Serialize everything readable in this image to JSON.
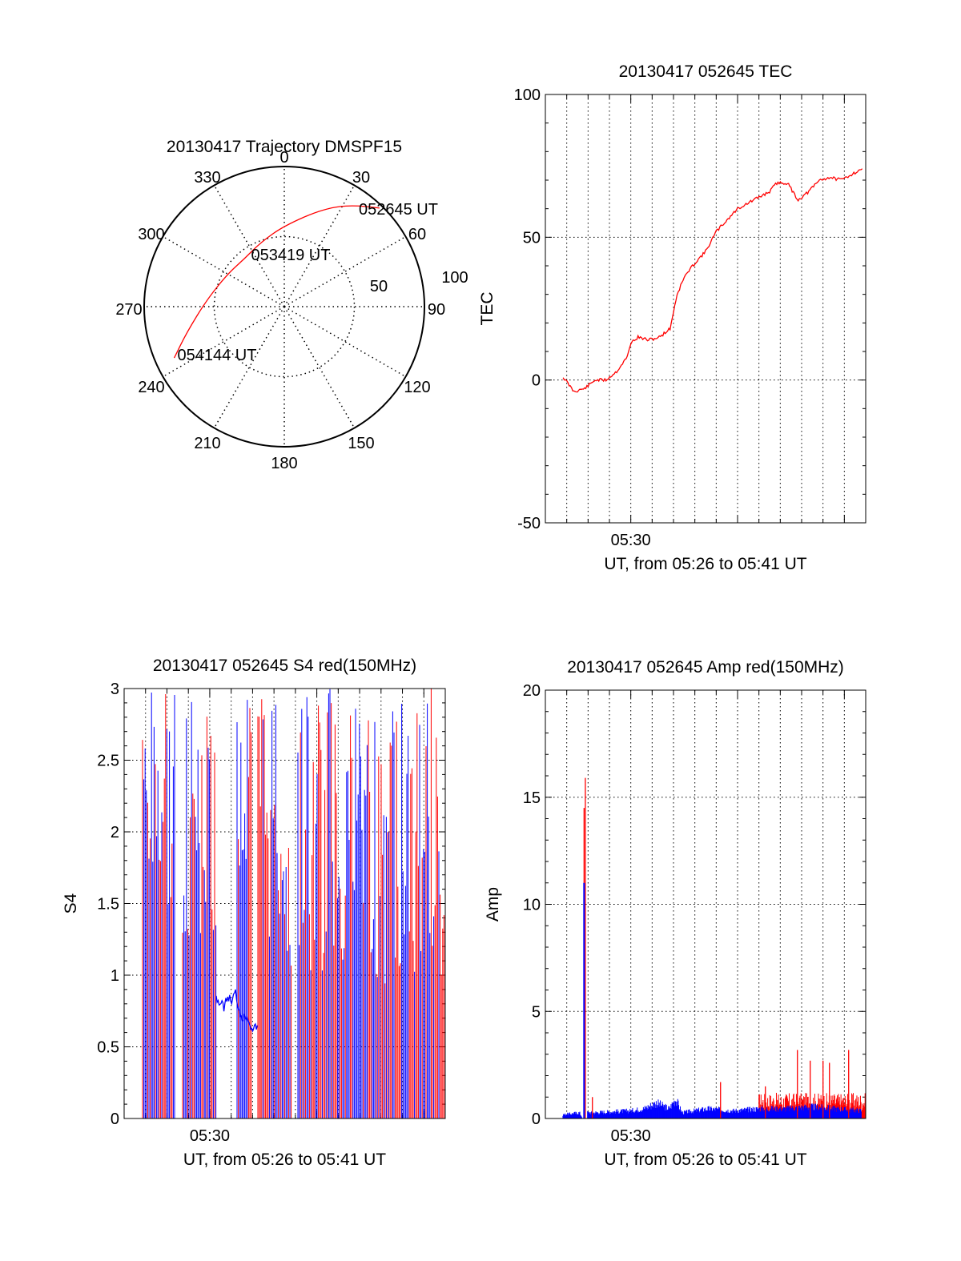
{
  "chart_data": [
    {
      "type": "polar",
      "title": "20130417 Trajectory DMSPF15",
      "azimuth_labels": [
        "0",
        "30",
        "60",
        "90",
        "120",
        "150",
        "180",
        "210",
        "240",
        "270",
        "300",
        "330"
      ],
      "radial_labels": [
        "50",
        "100"
      ],
      "track": {
        "color": "#ff0000",
        "points": [
          {
            "az": 44,
            "el": 2
          },
          {
            "az": 35,
            "el": 10
          },
          {
            "az": 22,
            "el": 22
          },
          {
            "az": 0,
            "el": 38
          },
          {
            "az": -20,
            "el": 46
          },
          {
            "az": -40,
            "el": 50
          },
          {
            "az": -60,
            "el": 48
          },
          {
            "az": -85,
            "el": 40
          },
          {
            "az": -105,
            "el": 25
          },
          {
            "az": -115,
            "el": 12
          }
        ],
        "labels": [
          {
            "text": "052645 UT",
            "az": 44,
            "el": 2
          },
          {
            "text": "053419 UT",
            "az": -24,
            "el": 55
          },
          {
            "text": "054144 UT",
            "az": -118,
            "el": 28
          }
        ]
      }
    },
    {
      "type": "line",
      "title": "20130417 052645 TEC",
      "ylabel": "TEC",
      "xlabel": "UT, from 05:26 to 05:41 UT",
      "x_tick_labels": [
        "05:30"
      ],
      "ylim": [
        -50,
        100
      ],
      "yticks": [
        "100",
        "50",
        "0",
        "-50"
      ],
      "xlim": [
        5.4333,
        5.6833
      ],
      "grid": true,
      "series": [
        {
          "color": "#ff0000",
          "x": [
            5.4472,
            5.4556,
            5.4639,
            5.4722,
            5.4806,
            5.4889,
            5.4972,
            5.5,
            5.5056,
            5.5139,
            5.5222,
            5.5306,
            5.5361,
            5.5417,
            5.55,
            5.5583,
            5.5667,
            5.575,
            5.5833,
            5.5917,
            5.6,
            5.6083,
            5.6139,
            5.6222,
            5.6306,
            5.6389,
            5.6472,
            5.6556,
            5.6639,
            5.6722,
            5.6806
          ],
          "y": [
            1,
            -4,
            -3,
            0,
            0,
            3,
            8,
            13,
            15,
            14,
            15,
            18,
            30,
            36,
            41,
            45,
            52,
            56,
            60,
            62,
            64,
            66,
            69,
            69,
            63,
            66,
            70,
            71,
            70,
            72,
            74
          ]
        }
      ]
    },
    {
      "type": "line",
      "title": "20130417 052645 S4 red(150MHz)",
      "ylabel": "S4",
      "xlabel": "UT, from 05:26 to 05:41 UT",
      "x_tick_labels": [
        "05:30"
      ],
      "ylim": [
        0,
        3
      ],
      "yticks": [
        "3",
        "2.5",
        "2",
        "1.5",
        "1",
        "0.5",
        "0"
      ],
      "xlim": [
        5.4333,
        5.6833
      ],
      "grid": true,
      "series": [
        {
          "color": "#0000ff",
          "x": [
            5.505,
            5.508,
            5.511,
            5.514,
            5.517,
            5.52,
            5.523,
            5.526,
            5.529,
            5.532,
            5.534,
            5.537
          ],
          "y": [
            0.85,
            0.8,
            0.78,
            0.85,
            0.82,
            0.88,
            0.75,
            0.7,
            0.72,
            0.65,
            0.62,
            0.65
          ]
        }
      ]
    },
    {
      "type": "line",
      "title": "20130417 052645 Amp red(150MHz)",
      "ylabel": "Amp",
      "xlabel": "UT, from 05:26 to 05:41 UT",
      "x_tick_labels": [
        "05:30"
      ],
      "ylim": [
        0,
        20
      ],
      "yticks": [
        "20",
        "15",
        "10",
        "5",
        "0"
      ],
      "xlim": [
        5.4333,
        5.6833
      ],
      "grid": true,
      "series": [
        {
          "color": "#ff0000",
          "x": [
            5.4625,
            5.4635,
            5.4645,
            5.4655,
            5.47,
            5.57,
            5.605,
            5.63,
            5.64,
            5.65,
            5.655,
            5.67,
            5.68
          ],
          "y": [
            0,
            14.5,
            15.9,
            0,
            1,
            1.7,
            1.5,
            3.2,
            2.7,
            2.7,
            2.6,
            3.2,
            0.5
          ]
        },
        {
          "color": "#0000ff",
          "x": [
            5.447,
            5.46,
            5.4625,
            5.4635,
            5.4645,
            5.4655,
            5.47,
            5.5,
            5.51,
            5.52,
            5.53,
            5.535,
            5.54,
            5.55,
            5.56,
            5.58,
            5.6,
            5.62,
            5.64,
            5.66,
            5.68
          ],
          "y": [
            0.2,
            0.3,
            0,
            11,
            0,
            0.3,
            0.3,
            0.4,
            0.5,
            0.8,
            0.5,
            1.0,
            0.3,
            0.4,
            0.5,
            0.4,
            0.5,
            0.5,
            0.6,
            0.5,
            0.4
          ]
        }
      ]
    }
  ]
}
